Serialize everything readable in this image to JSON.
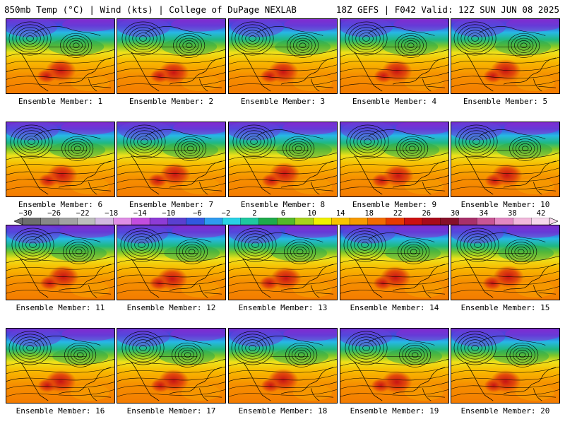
{
  "header": {
    "left": "850mb Temp (°C) | Wind (kts) | College of DuPage NEXLAB",
    "right": "18Z GEFS | F042 Valid: 12Z SUN JUN 08 2025"
  },
  "members": [
    {
      "label": "Ensemble Member: 1"
    },
    {
      "label": "Ensemble Member: 2"
    },
    {
      "label": "Ensemble Member: 3"
    },
    {
      "label": "Ensemble Member: 4"
    },
    {
      "label": "Ensemble Member: 5"
    },
    {
      "label": "Ensemble Member: 6"
    },
    {
      "label": "Ensemble Member: 7"
    },
    {
      "label": "Ensemble Member: 8"
    },
    {
      "label": "Ensemble Member: 9"
    },
    {
      "label": "Ensemble Member: 10"
    },
    {
      "label": "Ensemble Member: 11"
    },
    {
      "label": "Ensemble Member: 12"
    },
    {
      "label": "Ensemble Member: 13"
    },
    {
      "label": "Ensemble Member: 14"
    },
    {
      "label": "Ensemble Member: 15"
    },
    {
      "label": "Ensemble Member: 16"
    },
    {
      "label": "Ensemble Member: 17"
    },
    {
      "label": "Ensemble Member: 18"
    },
    {
      "label": "Ensemble Member: 19"
    },
    {
      "label": "Ensemble Member: 20"
    }
  ],
  "colorbar": {
    "labels": [
      "−30",
      "−26",
      "−22",
      "−18",
      "−14",
      "−10",
      "−6",
      "−2",
      "2",
      "6",
      "10",
      "14",
      "18",
      "22",
      "26",
      "30",
      "34",
      "38",
      "42"
    ],
    "colors": [
      "#6e6e6e",
      "#888888",
      "#a2a2a2",
      "#bdbdbd",
      "#d2b8e0",
      "#e08ee6",
      "#c34dde",
      "#8e3bd6",
      "#5a3fd0",
      "#3158e0",
      "#2f9bf0",
      "#29d2e6",
      "#1fc8a0",
      "#1eaa4c",
      "#55b82a",
      "#a8d21e",
      "#f0f000",
      "#f8c400",
      "#f79a00",
      "#f26b00",
      "#e63a00",
      "#cc1010",
      "#a80a1a",
      "#86102a",
      "#a8306a",
      "#c95595",
      "#e288c2",
      "#f2b8dc",
      "#f7d8ec"
    ]
  }
}
